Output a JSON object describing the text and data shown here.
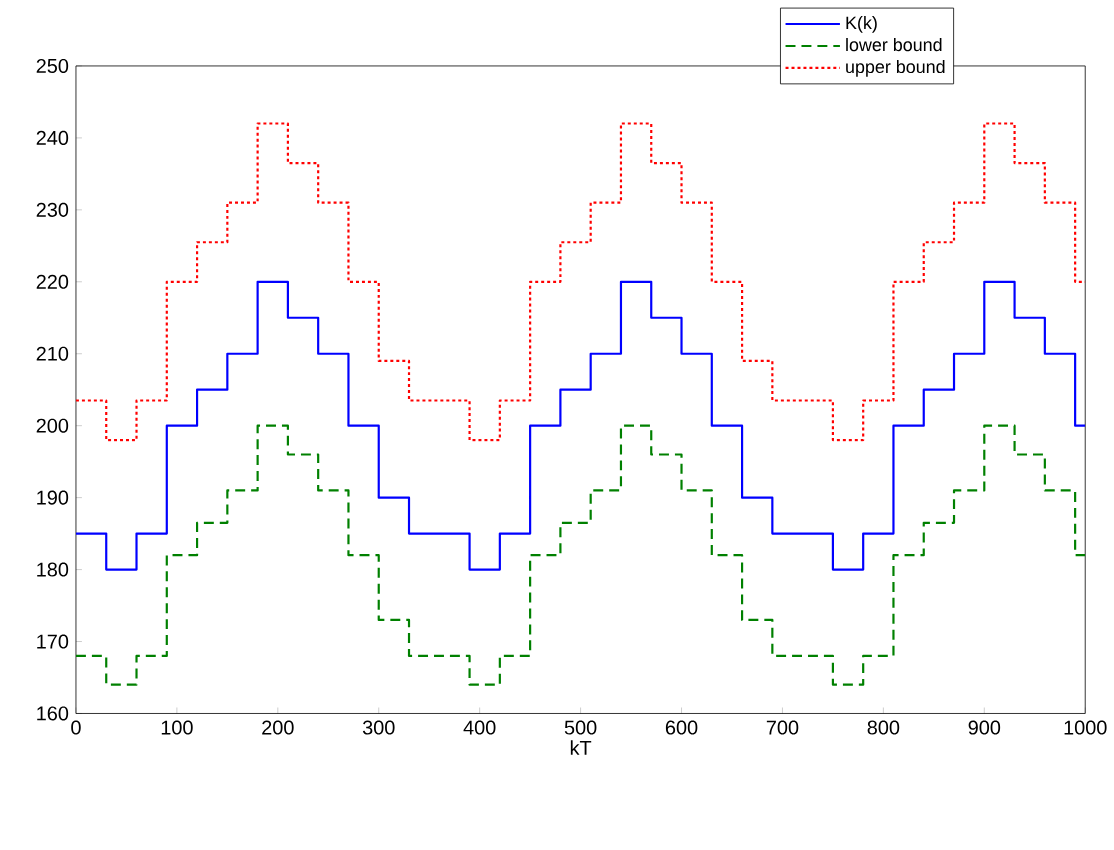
{
  "chart_data": {
    "type": "step",
    "xlabel": "kT",
    "x": [
      0,
      30,
      60,
      90,
      120,
      150,
      180,
      210,
      240,
      270,
      300,
      330,
      360,
      390,
      420,
      450,
      480,
      510,
      540,
      570,
      600,
      630,
      660,
      690,
      720,
      750,
      780,
      810,
      840,
      870,
      900,
      930,
      960,
      990,
      1000
    ],
    "series": [
      {
        "name": "K(k)",
        "color": "#0000ff",
        "line_style": "solid",
        "values": [
          185,
          180,
          185,
          200,
          205,
          210,
          220,
          215,
          210,
          200,
          190,
          185,
          185,
          180,
          185,
          200,
          205,
          210,
          220,
          215,
          210,
          200,
          190,
          185,
          185,
          180,
          185,
          200,
          205,
          210,
          220,
          215,
          210,
          200,
          200
        ]
      },
      {
        "name": "lower bound",
        "color": "#008000",
        "line_style": "dashed",
        "values": [
          168,
          164,
          168,
          182,
          186.5,
          191,
          200,
          196,
          191,
          182,
          173,
          168,
          168,
          164,
          168,
          182,
          186.5,
          191,
          200,
          196,
          191,
          182,
          173,
          168,
          168,
          164,
          168,
          182,
          186.5,
          191,
          200,
          196,
          191,
          182,
          182
        ]
      },
      {
        "name": "upper bound",
        "color": "#ff0000",
        "line_style": "dotted",
        "values": [
          203.5,
          198,
          203.5,
          220,
          225.5,
          231,
          242,
          236.5,
          231,
          220,
          209,
          203.5,
          203.5,
          198,
          203.5,
          220,
          225.5,
          231,
          242,
          236.5,
          231,
          220,
          209,
          203.5,
          203.5,
          198,
          203.5,
          220,
          225.5,
          231,
          242,
          236.5,
          231,
          220,
          220
        ]
      }
    ],
    "xlim": [
      0,
      1000
    ],
    "ylim": [
      160,
      250
    ],
    "xticks": [
      0,
      100,
      200,
      300,
      400,
      500,
      600,
      700,
      800,
      900,
      1000
    ],
    "yticks": [
      160,
      170,
      180,
      190,
      200,
      210,
      220,
      230,
      240,
      250
    ],
    "grid": false,
    "legend": "top right"
  }
}
